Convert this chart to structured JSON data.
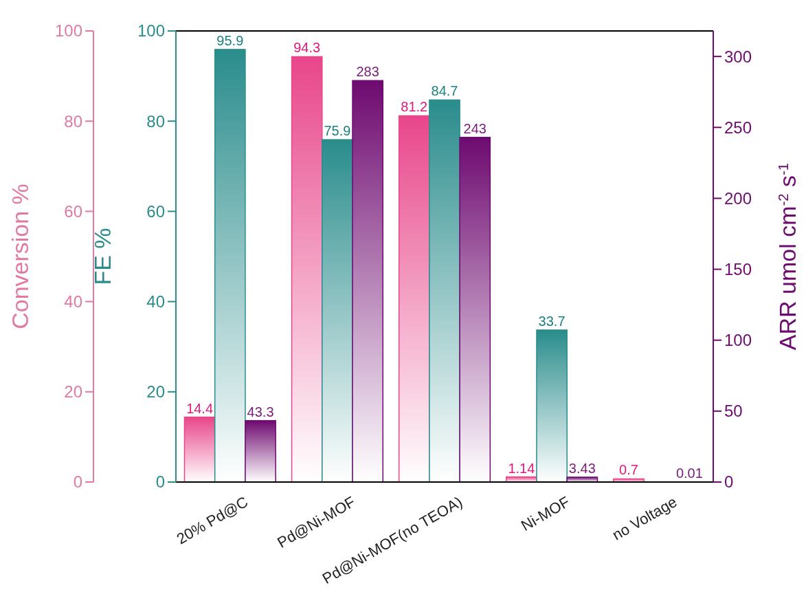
{
  "chart_data": {
    "type": "bar",
    "categories": [
      "20% Pd@C",
      "Pd@Ni-MOF",
      "Pd@Ni-MOF(no TEOA)",
      "Ni-MOF",
      "no Voltage"
    ],
    "series": [
      {
        "color": "#e8468a",
        "values": [
          14.4,
          94.3,
          81.2,
          1.14,
          0.7
        ],
        "axis": "y3"
      },
      {
        "color": "#2a8c8c",
        "values": [
          95.9,
          75.9,
          84.7,
          33.7,
          null
        ]
      },
      {
        "color": "#6e0a70",
        "values": [
          43.3,
          283,
          243,
          3.43,
          0.01
        ],
        "axis": "y2"
      }
    ],
    "ylabel": "FE %",
    "ylim": [
      0,
      100
    ],
    "yticks": [
      0,
      20,
      40,
      60,
      80,
      100
    ],
    "y3label": "Conversion %",
    "y3lim": [
      0,
      100
    ],
    "y3ticks": [
      0,
      20,
      40,
      60,
      80,
      100
    ],
    "y2label": "ARR umol cm$^{-2}$ s$^{-1}$",
    "y2lim": [
      0,
      318
    ],
    "y2ticks": [
      0,
      50,
      100,
      150,
      200,
      250,
      300
    ],
    "data_labels": true,
    "grid": false
  }
}
